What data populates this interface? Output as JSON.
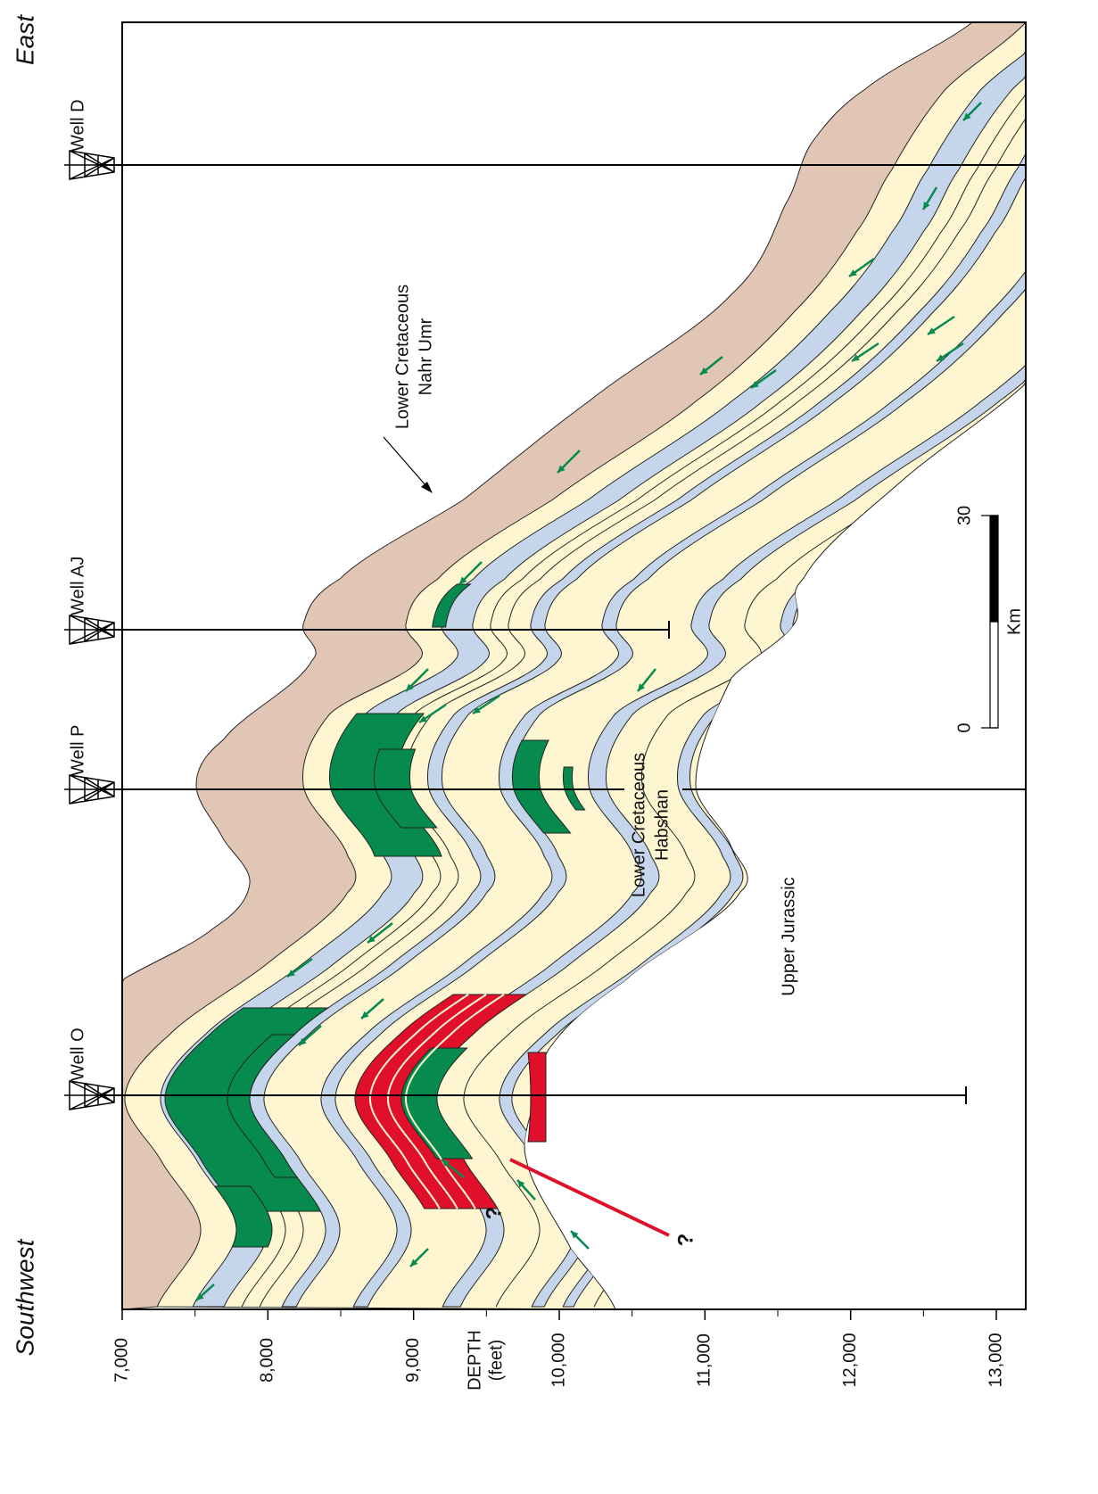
{
  "orientation": {
    "top": "East",
    "bottom": "Southwest"
  },
  "wells": [
    {
      "label": "Well D"
    },
    {
      "label": "Well AJ"
    },
    {
      "label": "Well P"
    },
    {
      "label": "Well O"
    }
  ],
  "formations": [
    {
      "lines": [
        "Lower Cretaceous",
        "Nahr Umr"
      ]
    },
    {
      "lines": [
        "Lower Cretaceous",
        "Habshan"
      ]
    },
    {
      "lines": [
        "Upper Jurassic"
      ]
    }
  ],
  "depth_axis": {
    "label": "DEPTH",
    "unit": "(feet)",
    "ticks": [
      {
        "value": 7000,
        "label": "7,000"
      },
      {
        "value": 8000,
        "label": "8,000"
      },
      {
        "value": 9000,
        "label": "9,000"
      },
      {
        "value": 10000,
        "label": "10,000"
      },
      {
        "value": 11000,
        "label": "11,000"
      },
      {
        "value": 12000,
        "label": "12,000"
      },
      {
        "value": 13000,
        "label": "13,000"
      }
    ]
  },
  "scale_bar": {
    "ticks": [
      0,
      30
    ],
    "unit": "Km"
  },
  "annotations": [
    "?",
    "?"
  ]
}
